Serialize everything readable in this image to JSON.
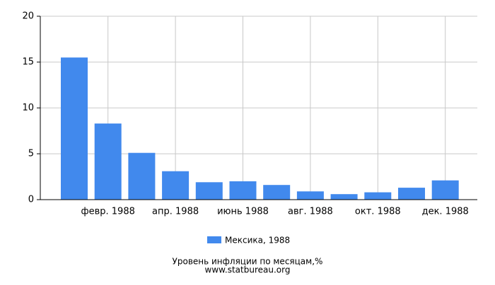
{
  "chart_data": {
    "type": "bar",
    "title": "Уровень инфляции по месяцам,%",
    "subtitle": "www.statbureau.org",
    "categories": [
      null,
      "февр. 1988",
      null,
      "апр. 1988",
      null,
      "июнь 1988",
      null,
      "авг. 1988",
      null,
      "окт. 1988",
      null,
      "дек. 1988"
    ],
    "series": [
      {
        "name": "Мексика, 1988",
        "color": "#4189ed",
        "values": [
          15.5,
          8.3,
          5.1,
          3.1,
          1.9,
          2.0,
          1.6,
          0.9,
          0.6,
          0.8,
          1.3,
          2.1
        ]
      }
    ],
    "ylim": [
      0,
      20
    ],
    "yticks": [
      0,
      5,
      10,
      15,
      20
    ],
    "grid": true,
    "legend": "bottom"
  }
}
